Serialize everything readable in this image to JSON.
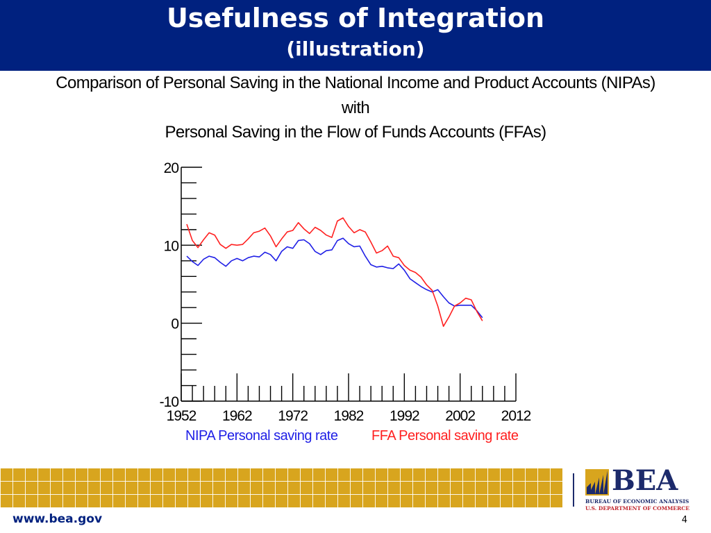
{
  "slide": {
    "title": "Usefulness of Integration",
    "subtitle": "(illustration)",
    "header_color": "#00217f",
    "footer_url": "www.bea.gov",
    "page_number": "4"
  },
  "chart_title_lines": [
    "Comparison of Personal Saving in the National Income and Product Accounts (NIPAs)",
    "with",
    "Personal Saving in the Flow of Funds Accounts (FFAs)"
  ],
  "chart_data": {
    "type": "line",
    "title": "Comparison of Personal Saving in the National Income and Product Accounts (NIPAs) with Personal Saving in the Flow of Funds Accounts (FFAs)",
    "xlabel": "",
    "ylabel": "",
    "xlim": [
      1952,
      2012
    ],
    "ylim": [
      -10,
      20
    ],
    "x_ticks": [
      1952,
      1962,
      1972,
      1982,
      1992,
      2002,
      2012
    ],
    "y_ticks": [
      -10,
      0,
      10,
      20
    ],
    "grid": false,
    "legend_position": "bottom",
    "x": [
      1953,
      1954,
      1955,
      1956,
      1957,
      1958,
      1959,
      1960,
      1961,
      1962,
      1963,
      1964,
      1965,
      1966,
      1967,
      1968,
      1969,
      1970,
      1971,
      1972,
      1973,
      1974,
      1975,
      1976,
      1977,
      1978,
      1979,
      1980,
      1981,
      1982,
      1983,
      1984,
      1985,
      1986,
      1987,
      1988,
      1989,
      1990,
      1991,
      1992,
      1993,
      1994,
      1995,
      1996,
      1997,
      1998,
      1999,
      2000,
      2001,
      2002,
      2003,
      2004,
      2005,
      2006
    ],
    "series": [
      {
        "name": "NIPA Personal saving rate",
        "color": "#1f1fe6",
        "values": [
          8.6,
          7.9,
          7.4,
          8.2,
          8.6,
          8.4,
          7.8,
          7.3,
          8.0,
          8.3,
          8.0,
          8.4,
          8.6,
          8.5,
          9.1,
          8.8,
          8.0,
          9.2,
          9.8,
          9.6,
          10.6,
          10.7,
          10.2,
          9.2,
          8.8,
          9.3,
          9.4,
          10.6,
          10.9,
          10.2,
          9.8,
          9.9,
          8.6,
          7.5,
          7.2,
          7.3,
          7.1,
          7.0,
          7.6,
          6.8,
          5.7,
          5.2,
          4.7,
          4.3,
          4.0,
          4.3,
          3.4,
          2.6,
          2.2,
          2.3,
          2.3,
          2.3,
          1.6,
          0.7
        ]
      },
      {
        "name": "FFA Personal saving rate",
        "color": "#ff2020",
        "values": [
          12.7,
          10.6,
          9.7,
          10.7,
          11.6,
          11.3,
          10.1,
          9.6,
          10.1,
          10.0,
          10.1,
          10.8,
          11.6,
          11.8,
          12.2,
          11.2,
          9.8,
          10.8,
          11.7,
          11.9,
          12.9,
          12.1,
          11.5,
          12.3,
          11.9,
          11.3,
          11.0,
          13.1,
          13.5,
          12.4,
          11.6,
          12.0,
          11.7,
          10.4,
          9.0,
          9.3,
          9.9,
          8.6,
          8.4,
          7.4,
          6.8,
          6.5,
          5.9,
          4.9,
          4.2,
          2.2,
          -0.4,
          0.8,
          2.2,
          2.6,
          3.2,
          3.0,
          1.5,
          0.3
        ]
      }
    ]
  },
  "footer": {
    "band_color": "#d8a51e",
    "logo_word": "BEA",
    "logo_line1": "BUREAU OF ECONOMIC ANALYSIS",
    "logo_line2": "U.S. DEPARTMENT OF COMMERCE",
    "logo_navy": "#1c2a6b",
    "logo_gold": "#d8a51e",
    "logo_red": "#c0262d"
  }
}
